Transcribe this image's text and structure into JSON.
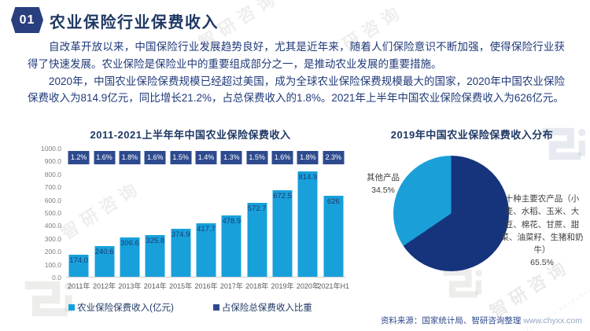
{
  "header": {
    "badge": "01",
    "title": "农业保险行业保费收入"
  },
  "intro": {
    "p1": "自改革开放以来，中国保险行业发展趋势良好，尤其是近年来，随着人们保险意识不断加强，使得保险行业获得了快速发展。农业保险是保险业中的重要组成部分之一，是推动农业发展的重要措施。",
    "p2": "2020年，中国农业保险保费规模已经超过美国，成为全球农业保险保费规模最大的国家，2020年中国农业保险保费收入为814.9亿元，同比增长21.2%，占总保费收入的1.8%。2021年上半年中国农业保险保费收入为626亿元。"
  },
  "chart_data": [
    {
      "type": "bar",
      "title": "2011-2021上半年年中国农业保险保费收入",
      "categories": [
        "2011年",
        "2012年",
        "2013年",
        "2014年",
        "2015年",
        "2016年",
        "2017年",
        "2018年",
        "2019年",
        "2020年",
        "2021年H1"
      ],
      "series": [
        {
          "name": "农业保险保费收入(亿元)",
          "values": [
            174.0,
            240.6,
            306.6,
            325.8,
            374.9,
            417.7,
            478.9,
            572.7,
            672.5,
            814.9,
            626
          ],
          "color": "#18a0db"
        },
        {
          "name": "占保险总保费收入比重",
          "values_pct": [
            "1.2%",
            "1.6%",
            "1.8%",
            "1.6%",
            "1.5%",
            "1.4%",
            "1.3%",
            "1.5%",
            "1.6%",
            "1.8%",
            "2.3%"
          ],
          "color": "#2e4a8f",
          "display": "label-boxes"
        }
      ],
      "bar_value_labels": [
        "174.0",
        "240.6",
        "306.6",
        "325.8",
        "374.9",
        "417.7",
        "478.9",
        "572.7",
        "672.5",
        "814.9",
        "626"
      ],
      "ylim": [
        0,
        1000
      ],
      "y_ticks": [
        "1000.0",
        "900.0",
        "800.0",
        "700.0",
        "600.0",
        "500.0",
        "400.0",
        "300.0",
        "200.0",
        "100.0",
        "0.0"
      ],
      "grid": "off",
      "legend_position": "bottom"
    },
    {
      "type": "pie",
      "title": "2019年中国农业保险保费收入分布",
      "start_angle_deg": 0,
      "direction": "clockwise",
      "slices": [
        {
          "label": "十种主要农产品（小麦、水稻、玉米、大豆、棉花、甘蔗、甜菜、油菜籽、生猪和奶牛）",
          "pct_label": "65.5%",
          "value": 65.5,
          "color": "#16347c"
        },
        {
          "label": "其他产品",
          "pct_label": "34.5%",
          "value": 34.5,
          "color": "#1b9fd9"
        }
      ]
    }
  ],
  "source": {
    "label": "资料来源：国家统计局、智研咨询整理",
    "url": "www.chyxx.com"
  },
  "watermark": {
    "brand": "智研咨询",
    "brand_short": "研咨询",
    "subtext": "INTELLIGENCE RESEARCH GROUP",
    "zhi": "智"
  },
  "colors": {
    "accent_navy": "#2e4a8f",
    "accent_cyan": "#18a0db",
    "pie_dark": "#16347c",
    "title_navy": "#1f3864"
  }
}
